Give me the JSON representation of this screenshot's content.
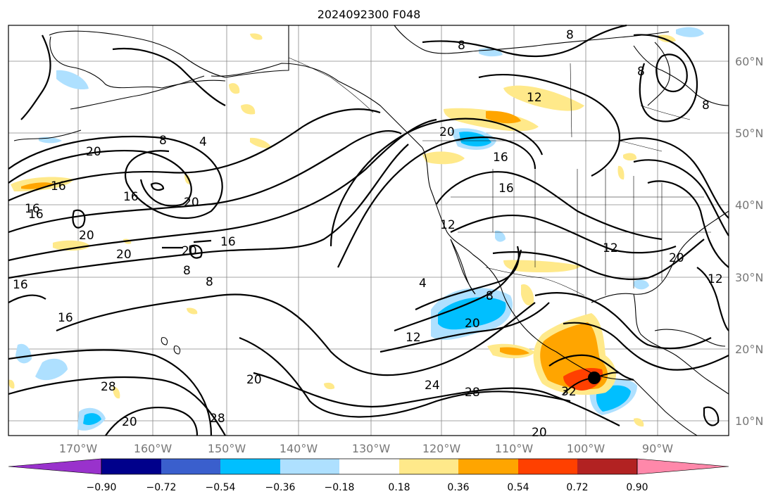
{
  "title": "2024092300 F048",
  "map": {
    "longitude_labels": [
      "170°W",
      "160°W",
      "150°W",
      "140°W",
      "130°W",
      "120°W",
      "110°W",
      "100°W",
      "90°W"
    ],
    "latitude_labels": [
      "60°N",
      "50°N",
      "40°N",
      "30°N",
      "20°N",
      "10°N"
    ],
    "contour_labels": [
      "8",
      "8",
      "12",
      "8",
      "8",
      "20",
      "8",
      "4",
      "20",
      "16",
      "16",
      "20",
      "16",
      "20",
      "20",
      "16",
      "20",
      "8",
      "8",
      "16",
      "16",
      "16",
      "12",
      "12",
      "4",
      "8",
      "12",
      "24",
      "28",
      "20",
      "28",
      "32",
      "20",
      "20",
      "20",
      "28",
      "12",
      "20",
      "16",
      "16"
    ],
    "marker": "black-dot",
    "colors": {
      "positive_light": "#ffe98a",
      "positive_orange": "#ffa500",
      "positive_red": "#ff4000",
      "negative_light": "#aee0ff",
      "negative_blue": "#00bfff",
      "contour": "#000000",
      "tick_label": "#777777"
    }
  },
  "colorbar": {
    "tick_labels": [
      "−0.90",
      "−0.72",
      "−0.54",
      "−0.36",
      "−0.18",
      "0.18",
      "0.36",
      "0.54",
      "0.72",
      "0.90"
    ],
    "colors": [
      "#9932cc",
      "#00008b",
      "#3a5fcd",
      "#00bfff",
      "#aee0ff",
      "#ffffff",
      "#ffe98a",
      "#ffa500",
      "#ff4000",
      "#b22222",
      "#ff88aa"
    ]
  }
}
